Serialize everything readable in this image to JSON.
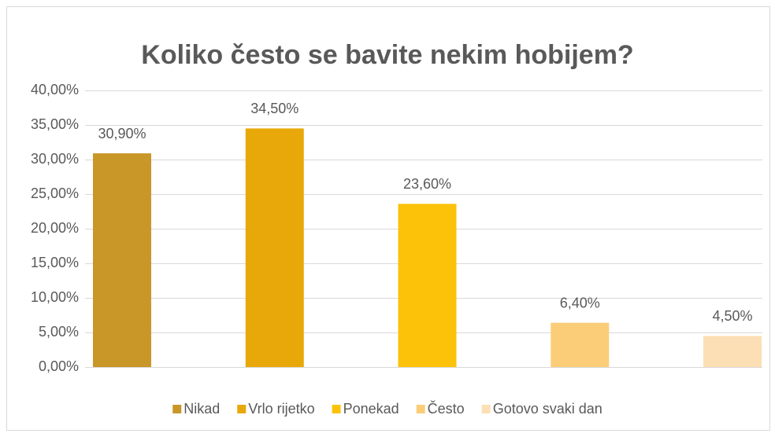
{
  "chart_data": {
    "type": "bar",
    "title": "Koliko često se bavite nekim hobijem?",
    "categories": [
      "Nikad",
      "Vrlo rijetko",
      "Ponekad",
      "Često",
      "Gotovo svaki dan"
    ],
    "values": [
      30.9,
      34.5,
      23.6,
      6.4,
      4.5
    ],
    "value_labels": [
      "30,90%",
      "34,50%",
      "23,60%",
      "6,40%",
      "4,50%"
    ],
    "colors": [
      "#c99628",
      "#e8a80a",
      "#fcc20a",
      "#fbcd78",
      "#fcdfb4"
    ],
    "ylim": [
      0,
      40
    ],
    "yticks": [
      {
        "value": 0,
        "label": "0,00%"
      },
      {
        "value": 5,
        "label": "5,00%"
      },
      {
        "value": 10,
        "label": "10,00%"
      },
      {
        "value": 15,
        "label": "15,00%"
      },
      {
        "value": 20,
        "label": "20,00%"
      },
      {
        "value": 25,
        "label": "25,00%"
      },
      {
        "value": 30,
        "label": "30,00%"
      },
      {
        "value": 35,
        "label": "35,00%"
      },
      {
        "value": 40,
        "label": "40,00%"
      }
    ],
    "grid": true,
    "legend": "bottom"
  }
}
